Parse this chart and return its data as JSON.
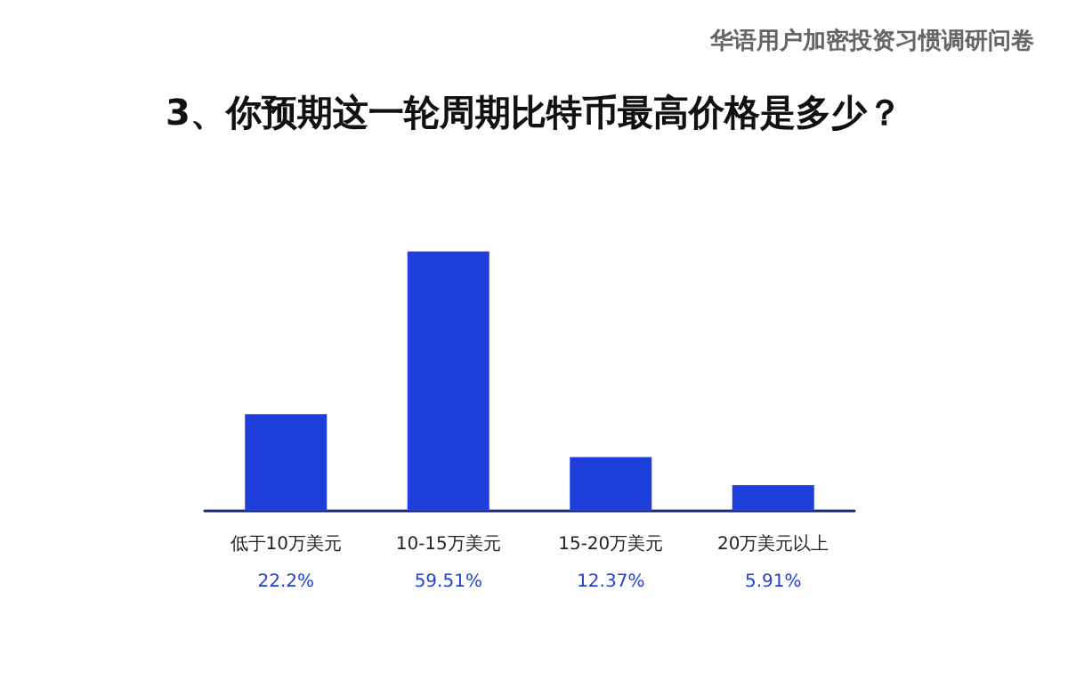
{
  "chart_data": {
    "type": "bar",
    "title": "3、你预期这一轮周期比特币最高价格是多少？",
    "subtitle": "华语用户加密投资习惯调研问卷",
    "categories": [
      "低于10万美元",
      "10-15万美元",
      "15-20万美元",
      "20万美元以上"
    ],
    "values": [
      22.2,
      59.51,
      12.37,
      5.91
    ],
    "value_labels": [
      "22.2%",
      "59.51%",
      "12.37%",
      "5.91%"
    ],
    "color": "#1f3fdb"
  }
}
